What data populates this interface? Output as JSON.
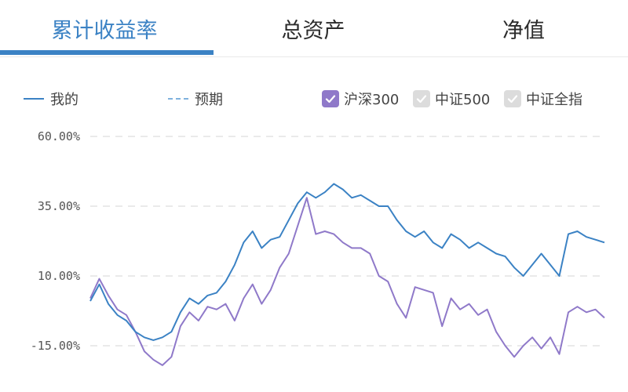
{
  "tabs": [
    {
      "label": "累计收益率",
      "active": true
    },
    {
      "label": "总资产",
      "active": false
    },
    {
      "label": "净值",
      "active": false
    }
  ],
  "legend": {
    "mine": "我的",
    "expected": "预期",
    "index_checks": [
      {
        "label": "沪深300",
        "checked": true,
        "color": "#8f79c9"
      },
      {
        "label": "中证500",
        "checked": false,
        "color": "#dcdcdc"
      },
      {
        "label": "中证全指",
        "checked": false,
        "color": "#dcdcdc"
      }
    ]
  },
  "colors": {
    "accent": "#3b82c4",
    "hs300": "#8f79c9"
  },
  "chart_data": {
    "type": "line",
    "y_ticks": [
      "60.00%",
      "35.00%",
      "10.00%",
      "-15.00%"
    ],
    "ylim": [
      -25,
      65
    ],
    "grid": true,
    "series": [
      {
        "name": "我的",
        "color": "#3b82c4",
        "values": [
          1,
          7,
          0,
          -4,
          -6,
          -10,
          -12,
          -13,
          -12,
          -10,
          -3,
          2,
          0,
          3,
          4,
          8,
          14,
          22,
          26,
          20,
          23,
          24,
          30,
          36,
          40,
          38,
          40,
          43,
          41,
          38,
          39,
          37,
          35,
          35,
          30,
          26,
          24,
          26,
          22,
          20,
          25,
          23,
          20,
          22,
          20,
          18,
          17,
          13,
          10,
          14,
          18,
          14,
          10,
          25,
          26,
          24,
          23,
          22
        ]
      },
      {
        "name": "沪深300",
        "color": "#8f79c9",
        "values": [
          2,
          9,
          3,
          -2,
          -4,
          -10,
          -17,
          -20,
          -22,
          -19,
          -8,
          -3,
          -6,
          -1,
          -2,
          0,
          -6,
          2,
          7,
          0,
          5,
          13,
          18,
          28,
          38,
          25,
          26,
          25,
          22,
          20,
          20,
          18,
          10,
          8,
          0,
          -5,
          6,
          5,
          4,
          -8,
          2,
          -2,
          0,
          -4,
          -2,
          -10,
          -15,
          -19,
          -15,
          -12,
          -16,
          -12,
          -18,
          -3,
          -1,
          -3,
          -2,
          -5
        ]
      }
    ]
  }
}
